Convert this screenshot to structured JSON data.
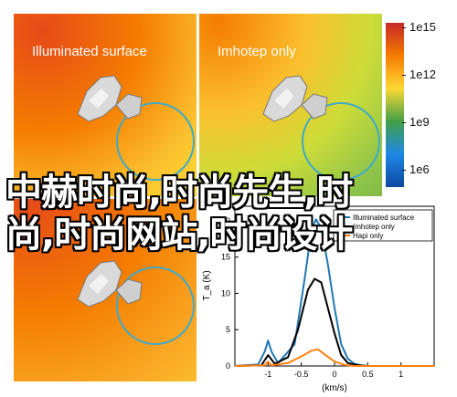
{
  "panels": {
    "top_left_title": "Illuminated surface",
    "top_right_title": "Imhotep only"
  },
  "colorbar": {
    "ticks": [
      "1e15",
      "1e12",
      "1e9",
      "1e6"
    ],
    "colors": [
      "#c62828",
      "#f57c00",
      "#fdd835",
      "#43a047",
      "#1e88e5",
      "#0d47a1"
    ]
  },
  "overlay": {
    "line1": "中赫时尚,时尚先生,时",
    "line2": "尚,时尚网站,时尚设计"
  },
  "chart_data": {
    "type": "line",
    "xlabel": "(km/s)",
    "ylabel": "T_a (K)",
    "xlim": [
      -1.5,
      1.5
    ],
    "ylim": [
      0,
      22
    ],
    "xticks": [
      "-1",
      "-0.5",
      "0",
      "0.5",
      "1"
    ],
    "yticks": [
      "0",
      "5",
      "10",
      "15",
      "20"
    ],
    "legend_position": "top-right",
    "series": [
      {
        "name": "Illuminated surface",
        "color": "#1f77b4",
        "x": [
          -1.5,
          -1.15,
          -1.05,
          -1.0,
          -0.95,
          -0.85,
          -0.6,
          -0.45,
          -0.35,
          -0.28,
          -0.2,
          -0.1,
          0.0,
          0.1,
          0.2,
          0.3,
          0.4,
          0.5,
          1.5
        ],
        "y": [
          0,
          0.2,
          2.0,
          3.5,
          2.0,
          0.4,
          3.0,
          12.0,
          18.5,
          20.2,
          19.0,
          14.0,
          8.0,
          3.0,
          1.0,
          0.3,
          0.1,
          0,
          0
        ]
      },
      {
        "name": "Imhotep only",
        "color": "#000000",
        "x": [
          -1.5,
          -1.1,
          -1.0,
          -0.9,
          -0.7,
          -0.55,
          -0.4,
          -0.3,
          -0.2,
          -0.1,
          0.0,
          0.1,
          0.2,
          0.35,
          0.5,
          1.5
        ],
        "y": [
          0,
          0.1,
          1.5,
          0.3,
          1.2,
          5.0,
          10.5,
          12.0,
          11.5,
          8.0,
          4.5,
          1.5,
          0.4,
          0.1,
          0,
          0
        ]
      },
      {
        "name": "Hapi only",
        "color": "#ff7f0e",
        "x": [
          -1.5,
          -1.05,
          -1.0,
          -0.95,
          -0.7,
          -0.5,
          -0.35,
          -0.25,
          -0.15,
          0.0,
          0.15,
          0.3,
          1.5
        ],
        "y": [
          0,
          0.1,
          0.6,
          0.1,
          0.4,
          1.3,
          2.1,
          2.3,
          1.6,
          0.6,
          0.15,
          0,
          0
        ]
      }
    ]
  }
}
